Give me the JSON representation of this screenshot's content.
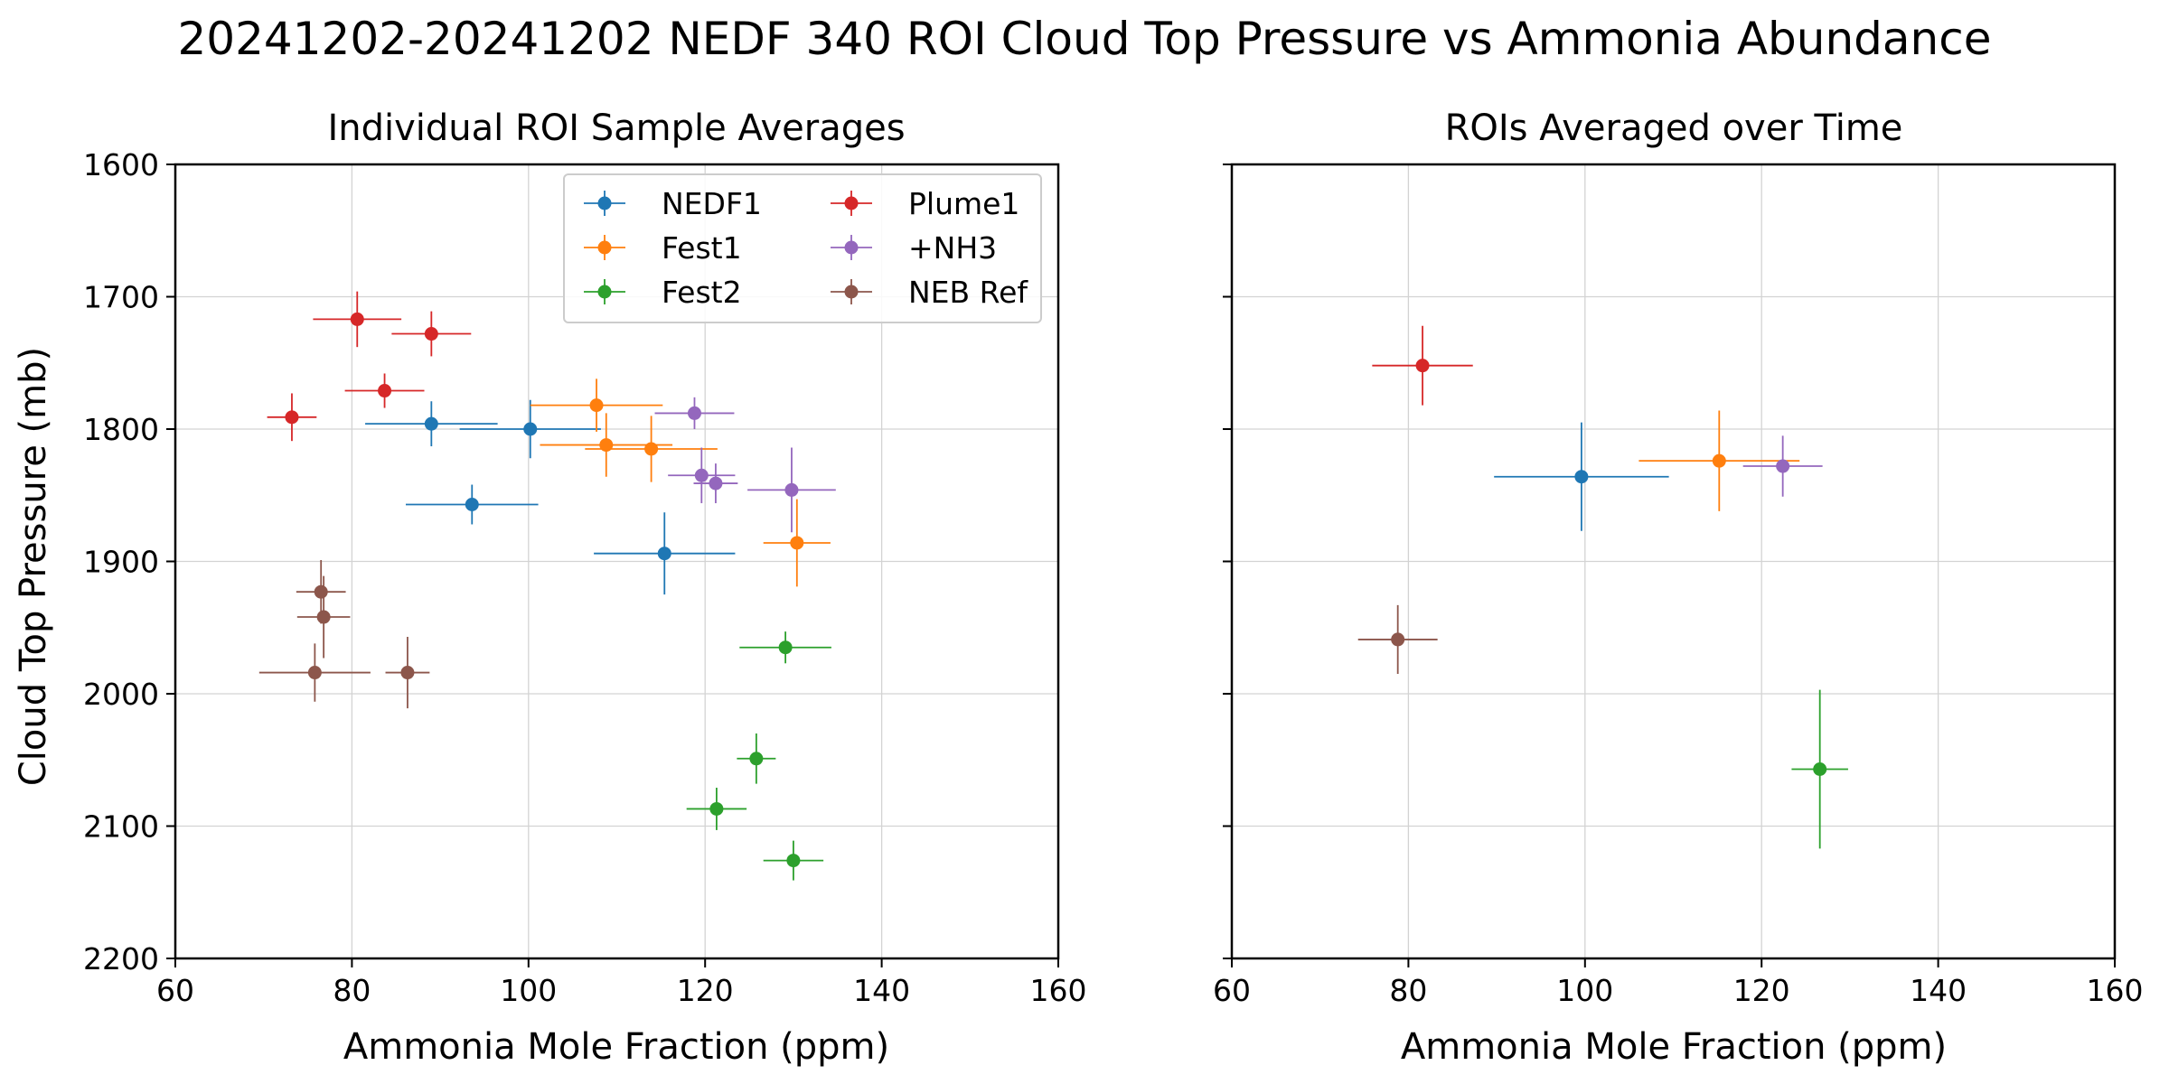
{
  "figure": {
    "title": "20241202-20241202 NEDF 340 ROI Cloud Top Pressure vs Ammonia Abundance"
  },
  "chart_data": [
    {
      "type": "scatter",
      "title": "Individual ROI Sample Averages",
      "xlabel": "Ammonia Mole Fraction (ppm)",
      "ylabel": "Cloud Top Pressure (mb)",
      "xlim": [
        60,
        160
      ],
      "ylim": [
        2200,
        1600
      ],
      "y_inverted": true,
      "xticks": [
        60,
        80,
        100,
        120,
        140,
        160
      ],
      "yticks": [
        1600,
        1700,
        1800,
        1900,
        2000,
        2100,
        2200
      ],
      "grid": true,
      "error_bars": true,
      "legend": {
        "placement": "top-right",
        "columns": 2
      },
      "series": [
        {
          "name": "NEDF1",
          "color": "#1f77b4",
          "points": [
            {
              "x": 89.0,
              "y": 1796,
              "xerr": 7.5,
              "yerr": 17
            },
            {
              "x": 100.2,
              "y": 1800,
              "xerr": 8.0,
              "yerr": 22
            },
            {
              "x": 93.6,
              "y": 1857,
              "xerr": 7.5,
              "yerr": 15
            },
            {
              "x": 115.4,
              "y": 1894,
              "xerr": 8.0,
              "yerr": 31
            }
          ]
        },
        {
          "name": "Fest1",
          "color": "#ff7f0e",
          "points": [
            {
              "x": 107.7,
              "y": 1782,
              "xerr": 7.5,
              "yerr": 20
            },
            {
              "x": 108.8,
              "y": 1812,
              "xerr": 7.5,
              "yerr": 24
            },
            {
              "x": 113.9,
              "y": 1815,
              "xerr": 7.5,
              "yerr": 25
            },
            {
              "x": 130.4,
              "y": 1886,
              "xerr": 3.8,
              "yerr": 33
            }
          ]
        },
        {
          "name": "Fest2",
          "color": "#2ca02c",
          "points": [
            {
              "x": 129.1,
              "y": 1965,
              "xerr": 5.2,
              "yerr": 12
            },
            {
              "x": 125.8,
              "y": 2049,
              "xerr": 2.2,
              "yerr": 19
            },
            {
              "x": 121.3,
              "y": 2087,
              "xerr": 3.4,
              "yerr": 16
            },
            {
              "x": 130.0,
              "y": 2126,
              "xerr": 3.4,
              "yerr": 15
            }
          ]
        },
        {
          "name": "Plume1",
          "color": "#d62728",
          "points": [
            {
              "x": 80.6,
              "y": 1717,
              "xerr": 5.0,
              "yerr": 21
            },
            {
              "x": 89.0,
              "y": 1728,
              "xerr": 4.5,
              "yerr": 17
            },
            {
              "x": 83.7,
              "y": 1771,
              "xerr": 4.5,
              "yerr": 13
            },
            {
              "x": 73.2,
              "y": 1791,
              "xerr": 2.8,
              "yerr": 18
            }
          ]
        },
        {
          "name": "+NH3",
          "color": "#9467bd",
          "points": [
            {
              "x": 118.8,
              "y": 1788,
              "xerr": 4.5,
              "yerr": 12
            },
            {
              "x": 119.6,
              "y": 1835,
              "xerr": 3.8,
              "yerr": 21
            },
            {
              "x": 121.2,
              "y": 1841,
              "xerr": 2.5,
              "yerr": 15
            },
            {
              "x": 129.8,
              "y": 1846,
              "xerr": 5.0,
              "yerr": 32
            }
          ]
        },
        {
          "name": "NEB Ref",
          "color": "#8c564b",
          "points": [
            {
              "x": 76.5,
              "y": 1923,
              "xerr": 2.8,
              "yerr": 24
            },
            {
              "x": 76.8,
              "y": 1942,
              "xerr": 3.0,
              "yerr": 31
            },
            {
              "x": 75.8,
              "y": 1984,
              "xerr": 6.3,
              "yerr": 22
            },
            {
              "x": 86.3,
              "y": 1984,
              "xerr": 2.5,
              "yerr": 27
            }
          ]
        }
      ]
    },
    {
      "type": "scatter",
      "title": "ROIs Averaged over Time",
      "xlabel": "Ammonia Mole Fraction (ppm)",
      "ylabel": "",
      "xlim": [
        60,
        160
      ],
      "ylim": [
        2200,
        1600
      ],
      "y_inverted": true,
      "xticks": [
        60,
        80,
        100,
        120,
        140,
        160
      ],
      "yticks": [
        1600,
        1700,
        1800,
        1900,
        2000,
        2100,
        2200
      ],
      "grid": true,
      "error_bars": true,
      "series": [
        {
          "color": "#1f77b4",
          "points": [
            {
              "x": 99.6,
              "y": 1836,
              "xerr": 9.9,
              "yerr": 41
            }
          ]
        },
        {
          "color": "#ff7f0e",
          "points": [
            {
              "x": 115.2,
              "y": 1824,
              "xerr": 9.1,
              "yerr": 38
            }
          ]
        },
        {
          "color": "#2ca02c",
          "points": [
            {
              "x": 126.6,
              "y": 2057,
              "xerr": 3.2,
              "yerr": 60
            }
          ]
        },
        {
          "color": "#d62728",
          "points": [
            {
              "x": 81.6,
              "y": 1752,
              "xerr": 5.7,
              "yerr": 30
            }
          ]
        },
        {
          "color": "#9467bd",
          "points": [
            {
              "x": 122.4,
              "y": 1828,
              "xerr": 4.5,
              "yerr": 23
            }
          ]
        },
        {
          "color": "#8c564b",
          "points": [
            {
              "x": 78.8,
              "y": 1959,
              "xerr": 4.5,
              "yerr": 26
            }
          ]
        }
      ]
    }
  ]
}
